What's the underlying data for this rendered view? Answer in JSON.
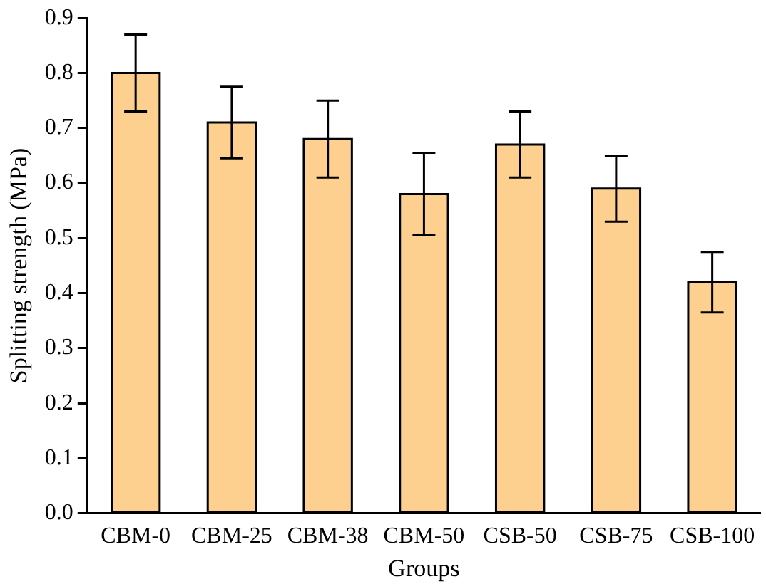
{
  "chart_data": {
    "type": "bar",
    "xlabel": "Groups",
    "ylabel": "Splitting strength (MPa)",
    "categories": [
      "CBM-0",
      "CBM-25",
      "CBM-38",
      "CBM-50",
      "CSB-50",
      "CSB-75",
      "CSB-100"
    ],
    "values": [
      0.8,
      0.71,
      0.68,
      0.58,
      0.67,
      0.59,
      0.42
    ],
    "errors": [
      0.07,
      0.065,
      0.07,
      0.075,
      0.06,
      0.06,
      0.055
    ],
    "color": "#fdd08f",
    "ylim": [
      0,
      0.9
    ],
    "yticks": [
      {
        "value": 0,
        "label": "0.0"
      },
      0.1,
      0.2,
      0.3,
      0.4,
      0.5,
      0.6,
      0.7,
      0.8,
      0.9
    ],
    "grid": false,
    "legend": false
  }
}
